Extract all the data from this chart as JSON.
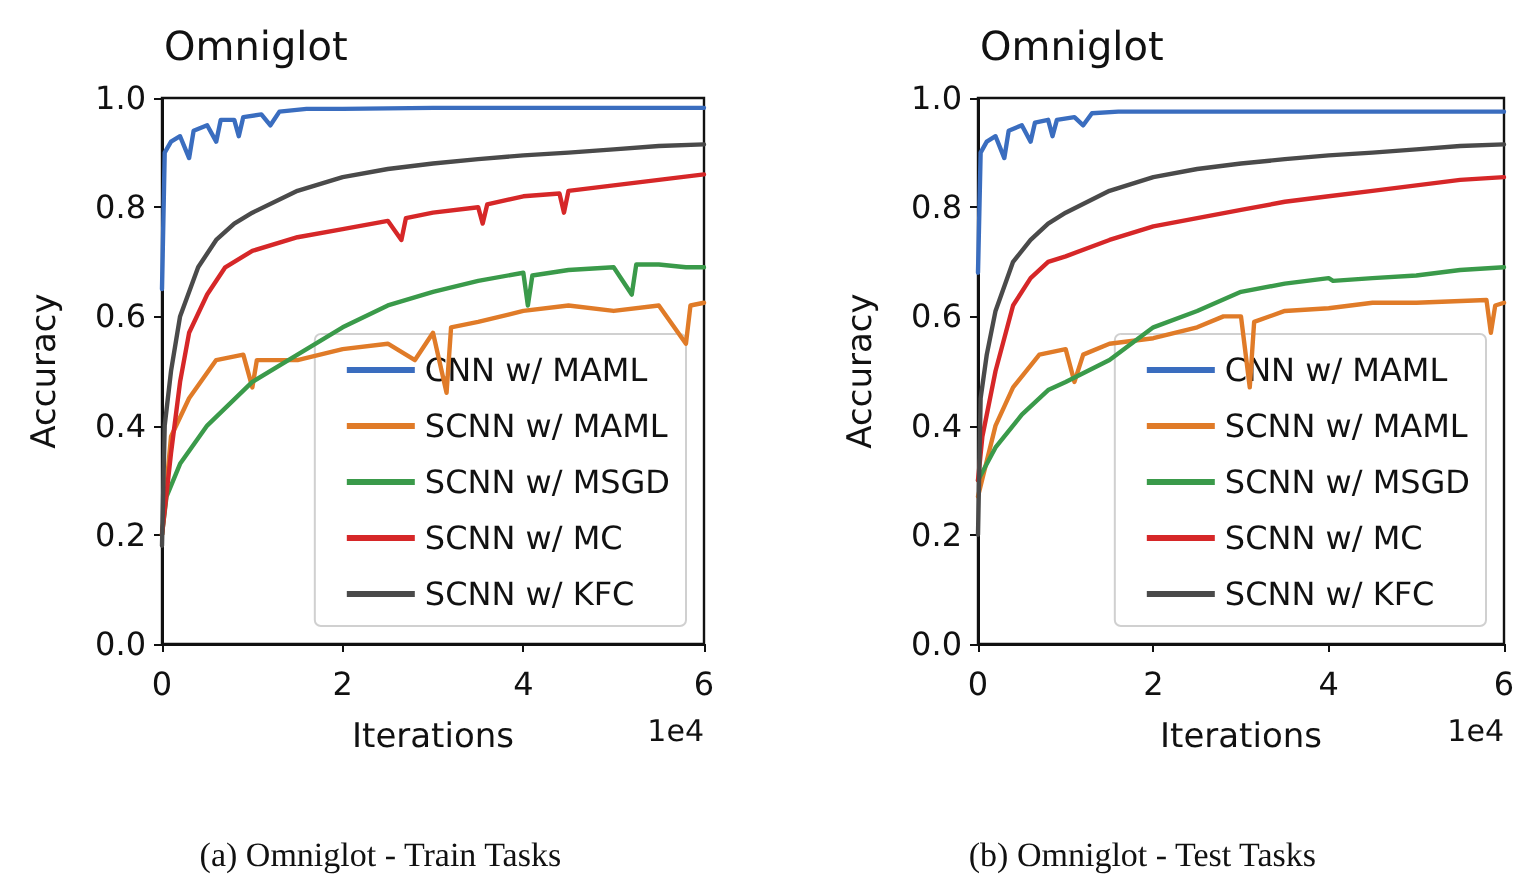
{
  "chart_data": [
    {
      "type": "line",
      "title": "Omniglot",
      "xlabel": "Iterations",
      "ylabel": "Accuracy",
      "xlim": [
        0,
        6
      ],
      "xticks": [
        0,
        2,
        4,
        6
      ],
      "ylim": [
        0,
        1
      ],
      "yticks": [
        {
          "value": 0,
          "label": "0.0"
        },
        {
          "value": 0.2,
          "label": "0.2"
        },
        {
          "value": 0.4,
          "label": "0.4"
        },
        {
          "value": 0.6,
          "label": "0.6"
        },
        {
          "value": 0.8,
          "label": "0.8"
        },
        {
          "value": 1,
          "label": "1.0"
        }
      ],
      "grid": false,
      "marker": "none",
      "legend": "bottom right",
      "annotations": [
        "1e4",
        "(a) Omniglot - Train Tasks"
      ],
      "series": [
        {
          "name": "CNN w/ MAML",
          "color": "#3a6dbf",
          "x": [
            0,
            0.03,
            0.1,
            0.2,
            0.3,
            0.35,
            0.5,
            0.6,
            0.65,
            0.8,
            0.85,
            0.9,
            1.1,
            1.2,
            1.3,
            1.6,
            2,
            3,
            4,
            5,
            6
          ],
          "values": [
            0.65,
            0.9,
            0.92,
            0.93,
            0.89,
            0.94,
            0.95,
            0.92,
            0.96,
            0.96,
            0.93,
            0.965,
            0.97,
            0.95,
            0.975,
            0.98,
            0.98,
            0.982,
            0.982,
            0.982,
            0.982
          ]
        },
        {
          "name": "SCNN w/ MAML",
          "color": "#e07b28",
          "x": [
            0,
            0.1,
            0.3,
            0.6,
            0.9,
            1,
            1.05,
            1.5,
            2,
            2.5,
            2.8,
            3,
            3.15,
            3.2,
            3.5,
            4,
            4.5,
            5,
            5.5,
            5.8,
            5.85,
            6
          ],
          "values": [
            0.2,
            0.38,
            0.45,
            0.52,
            0.53,
            0.47,
            0.52,
            0.52,
            0.54,
            0.55,
            0.52,
            0.57,
            0.46,
            0.58,
            0.59,
            0.61,
            0.62,
            0.61,
            0.62,
            0.55,
            0.62,
            0.625
          ]
        },
        {
          "name": "SCNN w/ MSGD",
          "color": "#3a9a4a",
          "x": [
            0,
            0.05,
            0.2,
            0.5,
            1,
            1.5,
            2,
            2.5,
            3,
            3.5,
            4,
            4.05,
            4.1,
            4.5,
            5,
            5.2,
            5.25,
            5.5,
            5.8,
            6
          ],
          "values": [
            0.2,
            0.27,
            0.33,
            0.4,
            0.48,
            0.53,
            0.58,
            0.62,
            0.645,
            0.665,
            0.68,
            0.62,
            0.675,
            0.685,
            0.69,
            0.64,
            0.695,
            0.695,
            0.69,
            0.69
          ]
        },
        {
          "name": "SCNN w/ MC",
          "color": "#d62728",
          "x": [
            0,
            0.1,
            0.2,
            0.3,
            0.5,
            0.7,
            1,
            1.5,
            2,
            2.5,
            2.65,
            2.7,
            3,
            3.5,
            3.55,
            3.6,
            4,
            4.4,
            4.45,
            4.5,
            5,
            5.5,
            6
          ],
          "values": [
            0.2,
            0.35,
            0.48,
            0.57,
            0.64,
            0.69,
            0.72,
            0.745,
            0.76,
            0.775,
            0.74,
            0.78,
            0.79,
            0.8,
            0.77,
            0.805,
            0.82,
            0.825,
            0.79,
            0.83,
            0.84,
            0.85,
            0.86
          ]
        },
        {
          "name": "SCNN w/ KFC",
          "color": "#4a4a4a",
          "x": [
            0,
            0.03,
            0.1,
            0.2,
            0.4,
            0.6,
            0.8,
            1,
            1.5,
            2,
            2.5,
            3,
            3.5,
            4,
            4.5,
            5,
            5.5,
            6
          ],
          "values": [
            0.18,
            0.4,
            0.5,
            0.6,
            0.69,
            0.74,
            0.77,
            0.79,
            0.83,
            0.855,
            0.87,
            0.88,
            0.888,
            0.895,
            0.9,
            0.906,
            0.912,
            0.915
          ]
        }
      ]
    },
    {
      "type": "line",
      "title": "Omniglot",
      "xlabel": "Iterations",
      "ylabel": "Accuracy",
      "xlim": [
        0,
        6
      ],
      "xticks": [
        0,
        2,
        4,
        6
      ],
      "ylim": [
        0,
        1
      ],
      "yticks": [
        {
          "value": 0,
          "label": "0.0"
        },
        {
          "value": 0.2,
          "label": "0.2"
        },
        {
          "value": 0.4,
          "label": "0.4"
        },
        {
          "value": 0.6,
          "label": "0.6"
        },
        {
          "value": 0.8,
          "label": "0.8"
        },
        {
          "value": 1,
          "label": "1.0"
        }
      ],
      "grid": false,
      "marker": "none",
      "legend": "bottom right",
      "annotations": [
        "1e4",
        "(b) Omniglot - Test Tasks"
      ],
      "series": [
        {
          "name": "CNN w/ MAML",
          "color": "#3a6dbf",
          "x": [
            0,
            0.03,
            0.1,
            0.2,
            0.3,
            0.35,
            0.5,
            0.6,
            0.65,
            0.8,
            0.85,
            0.9,
            1.1,
            1.2,
            1.3,
            1.6,
            2,
            3,
            4,
            5,
            6
          ],
          "values": [
            0.68,
            0.9,
            0.92,
            0.93,
            0.89,
            0.94,
            0.95,
            0.92,
            0.955,
            0.96,
            0.93,
            0.96,
            0.965,
            0.95,
            0.972,
            0.975,
            0.975,
            0.975,
            0.975,
            0.975,
            0.975
          ]
        },
        {
          "name": "SCNN w/ MAML",
          "color": "#e07b28",
          "x": [
            0,
            0.2,
            0.4,
            0.7,
            1,
            1.1,
            1.2,
            1.5,
            2,
            2.5,
            2.8,
            3,
            3.1,
            3.15,
            3.5,
            4,
            4.5,
            5,
            5.8,
            5.85,
            5.9,
            6
          ],
          "values": [
            0.27,
            0.4,
            0.47,
            0.53,
            0.54,
            0.48,
            0.53,
            0.55,
            0.56,
            0.58,
            0.6,
            0.6,
            0.47,
            0.59,
            0.61,
            0.615,
            0.625,
            0.625,
            0.63,
            0.57,
            0.62,
            0.625
          ]
        },
        {
          "name": "SCNN w/ MSGD",
          "color": "#3a9a4a",
          "x": [
            0,
            0.2,
            0.5,
            0.8,
            1,
            1.5,
            2,
            2.5,
            3,
            3.5,
            4,
            4.05,
            4.5,
            5,
            5.5,
            6
          ],
          "values": [
            0.3,
            0.36,
            0.42,
            0.465,
            0.48,
            0.52,
            0.58,
            0.61,
            0.645,
            0.66,
            0.67,
            0.665,
            0.67,
            0.675,
            0.685,
            0.69
          ]
        },
        {
          "name": "SCNN w/ MC",
          "color": "#d62728",
          "x": [
            0,
            0.05,
            0.2,
            0.4,
            0.6,
            0.8,
            1,
            1.5,
            2,
            2.5,
            3,
            3.5,
            4,
            4.5,
            5,
            5.5,
            6
          ],
          "values": [
            0.3,
            0.38,
            0.5,
            0.62,
            0.67,
            0.7,
            0.71,
            0.74,
            0.765,
            0.78,
            0.795,
            0.81,
            0.82,
            0.83,
            0.84,
            0.85,
            0.855
          ]
        },
        {
          "name": "SCNN w/ KFC",
          "color": "#4a4a4a",
          "x": [
            0,
            0.03,
            0.1,
            0.2,
            0.4,
            0.6,
            0.8,
            1,
            1.5,
            2,
            2.5,
            3,
            3.5,
            4,
            4.5,
            5,
            5.5,
            6
          ],
          "values": [
            0.2,
            0.45,
            0.53,
            0.61,
            0.7,
            0.74,
            0.77,
            0.79,
            0.83,
            0.855,
            0.87,
            0.88,
            0.888,
            0.895,
            0.9,
            0.906,
            0.912,
            0.915
          ]
        }
      ]
    }
  ]
}
